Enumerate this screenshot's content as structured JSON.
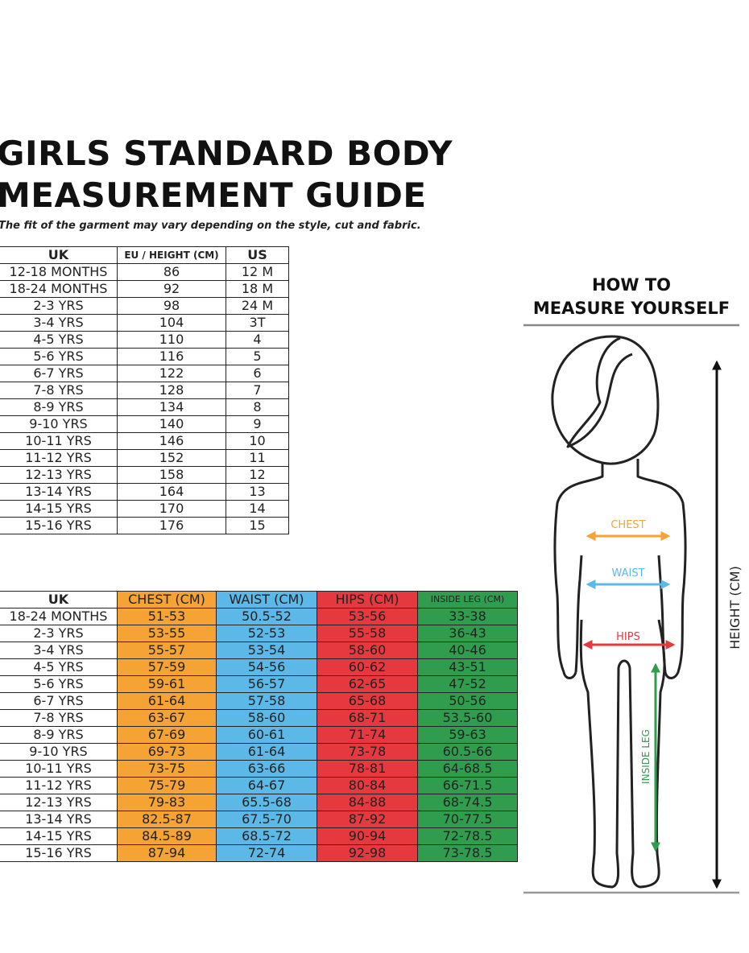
{
  "header": {
    "title": [
      "GIRLS STANDARD BODY",
      "MEASUREMENT GUIDE"
    ],
    "subtitle": "The fit of the garment may vary depending on the style, cut and fabric."
  },
  "size_table": {
    "columns": [
      "UK",
      "EU / HEIGHT (CM)",
      "US"
    ],
    "rows": [
      [
        "12-18 MONTHS",
        "86",
        "12 M"
      ],
      [
        "18-24 MONTHS",
        "92",
        "18 M"
      ],
      [
        "2-3 YRS",
        "98",
        "24 M"
      ],
      [
        "3-4 YRS",
        "104",
        "3T"
      ],
      [
        "4-5 YRS",
        "110",
        "4"
      ],
      [
        "5-6 YRS",
        "116",
        "5"
      ],
      [
        "6-7 YRS",
        "122",
        "6"
      ],
      [
        "7-8 YRS",
        "128",
        "7"
      ],
      [
        "8-9 YRS",
        "134",
        "8"
      ],
      [
        "9-10 YRS",
        "140",
        "9"
      ],
      [
        "10-11 YRS",
        "146",
        "10"
      ],
      [
        "11-12 YRS",
        "152",
        "11"
      ],
      [
        "12-13 YRS",
        "158",
        "12"
      ],
      [
        "13-14 YRS",
        "164",
        "13"
      ],
      [
        "14-15 YRS",
        "170",
        "14"
      ],
      [
        "15-16 YRS",
        "176",
        "15"
      ]
    ]
  },
  "measurement_table": {
    "columns": [
      "UK",
      "CHEST (CM)",
      "WAIST (CM)",
      "HIPS (CM)",
      "INSIDE LEG (CM)"
    ],
    "colors": [
      "#ffffff",
      "#f4a334",
      "#5cb8e6",
      "#e6393f",
      "#2f9c4e"
    ],
    "rows": [
      [
        "18-24 MONTHS",
        "51-53",
        "50.5-52",
        "53-56",
        "33-38"
      ],
      [
        "2-3 YRS",
        "53-55",
        "52-53",
        "55-58",
        "36-43"
      ],
      [
        "3-4 YRS",
        "55-57",
        "53-54",
        "58-60",
        "40-46"
      ],
      [
        "4-5 YRS",
        "57-59",
        "54-56",
        "60-62",
        "43-51"
      ],
      [
        "5-6 YRS",
        "59-61",
        "56-57",
        "62-65",
        "47-52"
      ],
      [
        "6-7 YRS",
        "61-64",
        "57-58",
        "65-68",
        "50-56"
      ],
      [
        "7-8 YRS",
        "63-67",
        "58-60",
        "68-71",
        "53.5-60"
      ],
      [
        "8-9 YRS",
        "67-69",
        "60-61",
        "71-74",
        "59-63"
      ],
      [
        "9-10 YRS",
        "69-73",
        "61-64",
        "73-78",
        "60.5-66"
      ],
      [
        "10-11 YRS",
        "73-75",
        "63-66",
        "78-81",
        "64-68.5"
      ],
      [
        "11-12 YRS",
        "75-79",
        "64-67",
        "80-84",
        "66-71.5"
      ],
      [
        "12-13 YRS",
        "79-83",
        "65.5-68",
        "84-88",
        "68-74.5"
      ],
      [
        "13-14 YRS",
        "82.5-87",
        "67.5-70",
        "87-92",
        "70-77.5"
      ],
      [
        "14-15 YRS",
        "84.5-89",
        "68.5-72",
        "90-94",
        "72-78.5"
      ],
      [
        "15-16 YRS",
        "87-94",
        "72-74",
        "92-98",
        "73-78.5"
      ]
    ]
  },
  "diagram": {
    "title": [
      "HOW TO",
      "MEASURE YOURSELF"
    ],
    "chest": "CHEST",
    "waist": "WAIST",
    "hips": "HIPS",
    "inside_leg": "INSIDE LEG",
    "height": "HEIGHT (CM)"
  }
}
